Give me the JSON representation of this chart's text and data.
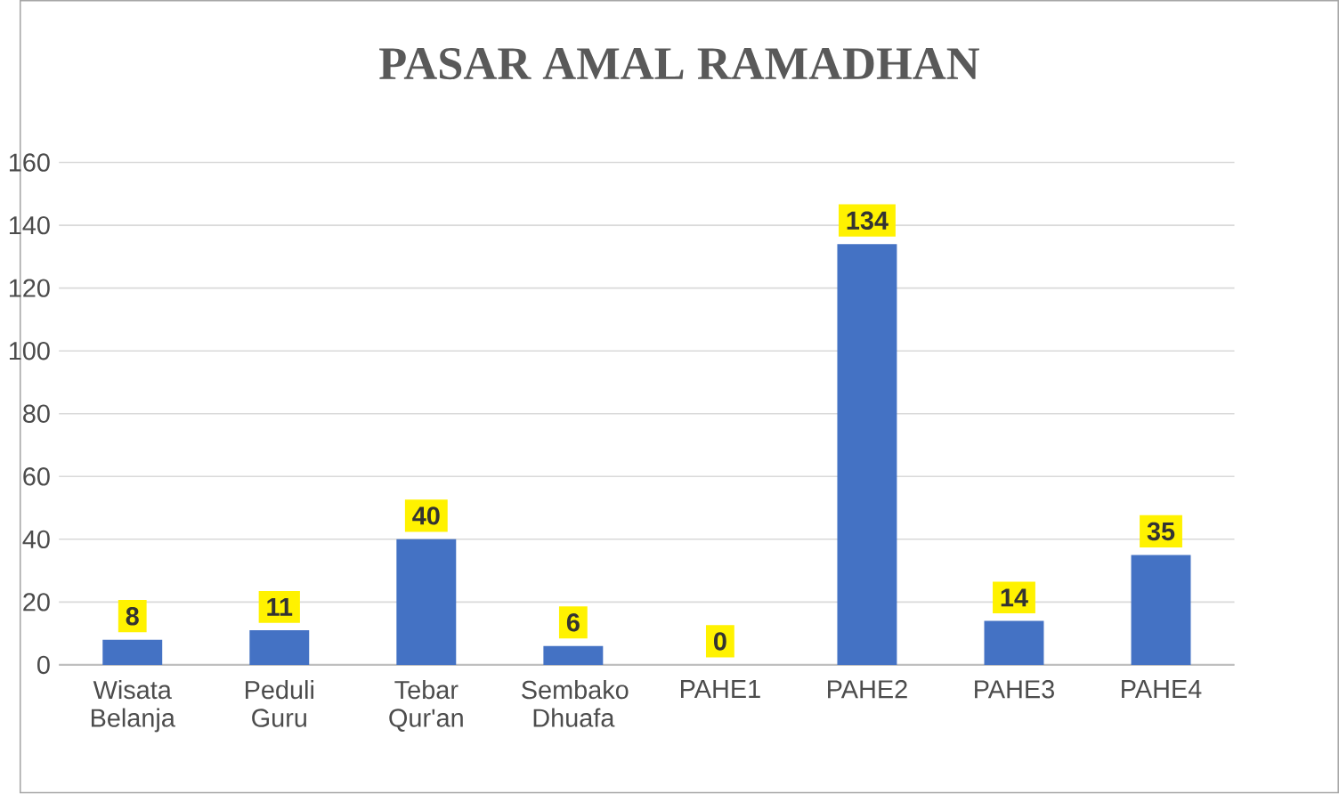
{
  "chart_data": {
    "type": "bar",
    "title": "PASAR AMAL RAMADHAN",
    "categories": [
      "Wisata Belanja",
      "Peduli Guru",
      "Tebar Qur'an",
      "Sembako Dhuafa",
      "PAHE1",
      "PAHE2",
      "PAHE3",
      "PAHE4"
    ],
    "values": [
      8,
      11,
      40,
      6,
      0,
      134,
      14,
      35
    ],
    "color": "#4472c4",
    "ylim": [
      0,
      160
    ],
    "yticks": [
      0,
      20,
      40,
      60,
      80,
      100,
      120,
      140,
      160
    ],
    "grid": "y",
    "data_labels": true
  }
}
